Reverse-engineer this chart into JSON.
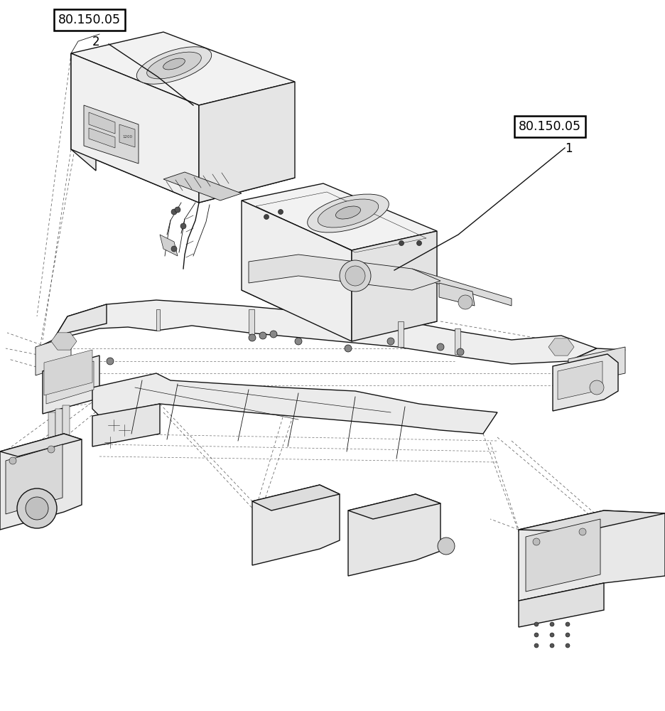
{
  "figure_width": 9.36,
  "figure_height": 10.0,
  "dpi": 100,
  "bg_color": "#ffffff",
  "label1": "80.150.05",
  "label1_num": "1",
  "label2": "80.150.05",
  "label2_num": "2",
  "line_color": "#000000",
  "text_color": "#000000",
  "label_fontsize": 12.5,
  "num_fontsize": 12,
  "lw_main": 1.0,
  "lw_detail": 0.6,
  "lw_dash": 0.55,
  "color": "#111111",
  "dash_color": "#444444"
}
